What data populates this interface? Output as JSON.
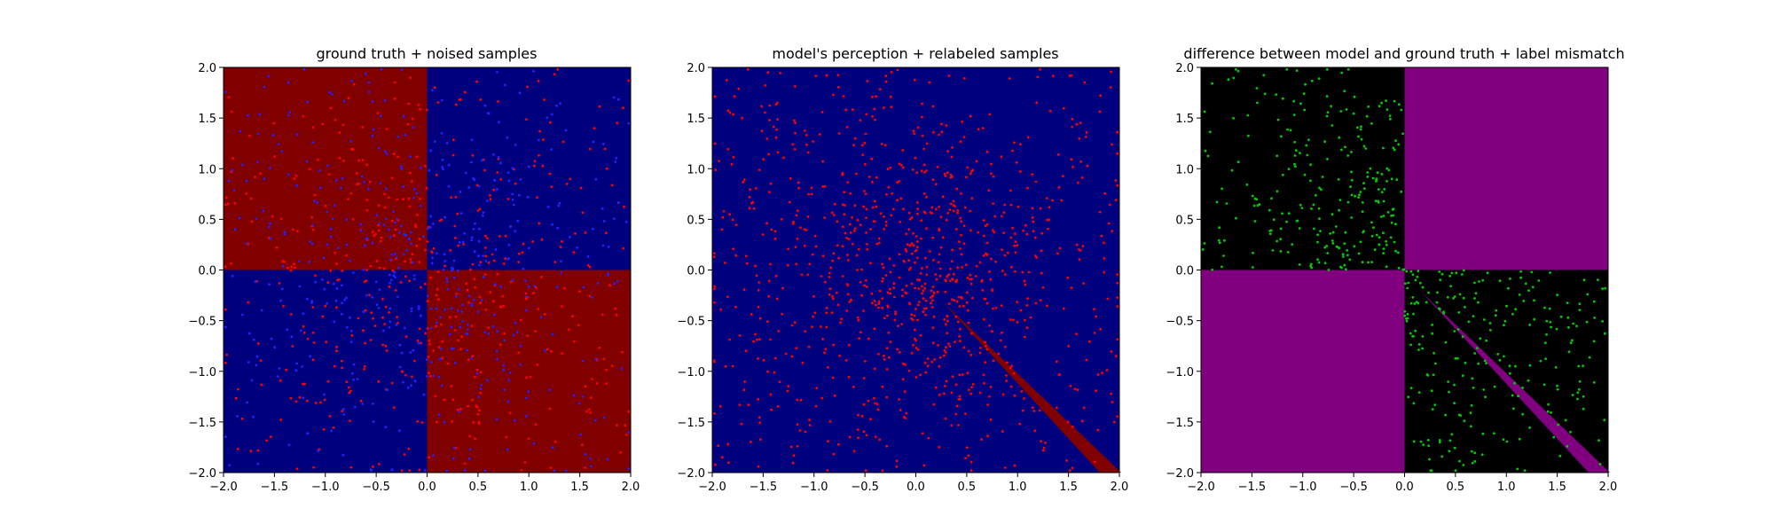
{
  "chart_data": [
    {
      "type": "scatter",
      "title": "ground truth + noised samples",
      "xlim": [
        -2.0,
        2.0
      ],
      "ylim": [
        -2.0,
        2.0
      ],
      "x_ticks": [
        "−2.0",
        "−1.5",
        "−1.0",
        "−0.5",
        "0.0",
        "0.5",
        "1.0",
        "1.5",
        "2.0"
      ],
      "y_ticks": [
        "−2.0",
        "−1.5",
        "−1.0",
        "−0.5",
        "0.0",
        "0.5",
        "1.0",
        "1.5",
        "2.0"
      ],
      "background": "quadrant XOR regions: x<0,y>0 and x>0,y<0 dark red; other quadrants dark blue",
      "region_colors": {
        "class_1": "#800000",
        "class_0": "#00007f"
      },
      "series": [
        {
          "color": "#ff0000",
          "approx_count": 500,
          "distribution": "uniform in [-2,2]x[-2,2], denser near origin"
        },
        {
          "color": "#2222ff",
          "approx_count": 500,
          "distribution": "uniform in [-2,2]x[-2,2], denser near origin"
        }
      ],
      "grid": false
    },
    {
      "type": "scatter",
      "title": "model's perception + relabeled samples",
      "xlim": [
        -2.0,
        2.0
      ],
      "ylim": [
        -2.0,
        2.0
      ],
      "x_ticks": [
        "−2.0",
        "−1.5",
        "−1.0",
        "−0.5",
        "0.0",
        "0.5",
        "1.0",
        "1.5",
        "2.0"
      ],
      "y_ticks": [
        "−2.0",
        "−1.5",
        "−1.0",
        "−0.5",
        "0.0",
        "0.5",
        "1.0",
        "1.5",
        "2.0"
      ],
      "background": "entire plane dark blue except a thin dark red diagonal strip from (0.25,-0.3) to (2.0,-2.0)",
      "region_colors": {
        "class_1": "#800000",
        "class_0": "#00007f"
      },
      "strip": {
        "x0": 0.25,
        "y0": -0.3,
        "x1": 2.0,
        "y1": -2.0
      },
      "series": [
        {
          "color": "#ff0000",
          "approx_count": 1000,
          "distribution": "all samples relabeled red"
        }
      ],
      "grid": false
    },
    {
      "type": "scatter",
      "title": "difference between model and ground truth + label mismatch",
      "xlim": [
        -2.0,
        2.0
      ],
      "ylim": [
        -2.0,
        2.0
      ],
      "x_ticks": [
        "−2.0",
        "−1.5",
        "−1.0",
        "−0.5",
        "0.0",
        "0.5",
        "1.0",
        "1.5",
        "2.0"
      ],
      "y_ticks": [
        "−2.0",
        "−1.5",
        "−1.0",
        "−0.5",
        "0.0",
        "0.5",
        "1.0",
        "1.5",
        "2.0"
      ],
      "background": "top-right and bottom-left quadrants purple, other quadrants black, purple diagonal strip in bottom-right",
      "region_colors": {
        "mismatch": "#800080",
        "match": "#000000"
      },
      "strip": {
        "x0": 0.15,
        "y0": -0.2,
        "x1": 2.0,
        "y1": -2.0
      },
      "series": [
        {
          "color": "#00cc00",
          "approx_count": 500,
          "distribution": "points in top-left and bottom-right quadrants"
        }
      ],
      "grid": false
    }
  ]
}
